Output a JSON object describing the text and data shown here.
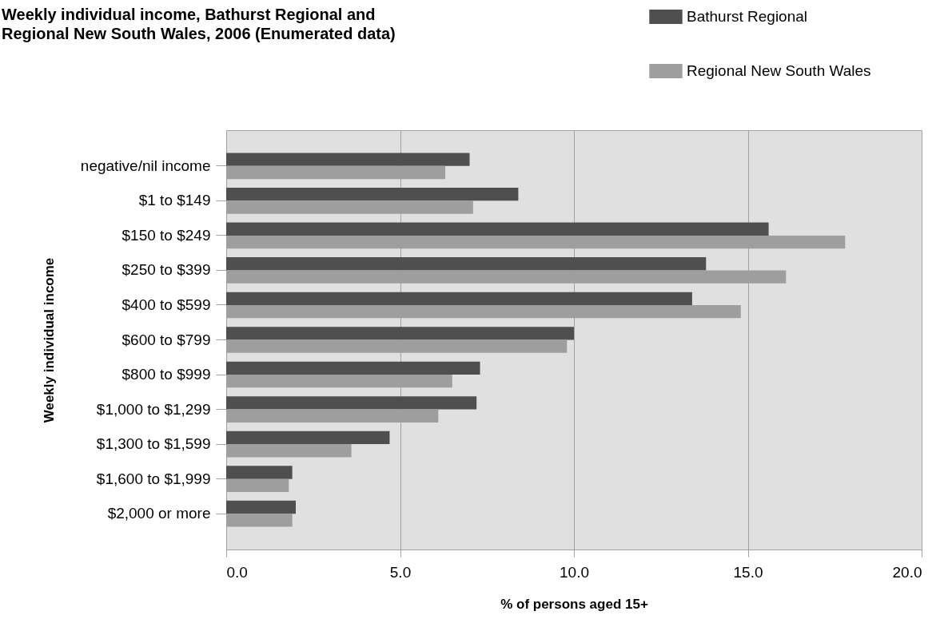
{
  "chart_data": {
    "type": "bar",
    "orientation": "horizontal",
    "title": "Weekly individual income, Bathurst Regional and Regional New South Wales, 2006 (Enumerated data)",
    "xlabel": "% of persons aged 15+",
    "ylabel": "Weekly individual income",
    "categories": [
      "negative/nil income",
      "$1 to $149",
      "$150 to $249",
      "$250 to $399",
      "$400 to $599",
      "$600 to $799",
      "$800 to $999",
      "$1,000 to $1,299",
      "$1,300 to $1,599",
      "$1,600 to $1,999",
      "$2,000 or more"
    ],
    "series": [
      {
        "name": "Bathurst Regional",
        "color": "#4f4f4f",
        "values": [
          7.0,
          8.4,
          15.6,
          13.8,
          13.4,
          10.0,
          7.3,
          7.2,
          4.7,
          1.9,
          2.0
        ]
      },
      {
        "name": "Regional New South Wales",
        "color": "#9e9e9e",
        "values": [
          6.3,
          7.1,
          17.8,
          16.1,
          14.8,
          9.8,
          6.5,
          6.1,
          3.6,
          1.8,
          1.9
        ]
      }
    ],
    "xlim": [
      0,
      20
    ],
    "xticks": [
      {
        "value": 0,
        "label": "0.0"
      },
      {
        "value": 5,
        "label": "5.0"
      },
      {
        "value": 10,
        "label": "10.0"
      },
      {
        "value": 15,
        "label": "15.0"
      },
      {
        "value": 20,
        "label": "20.0"
      }
    ],
    "grid": "x",
    "legend": "top right"
  }
}
